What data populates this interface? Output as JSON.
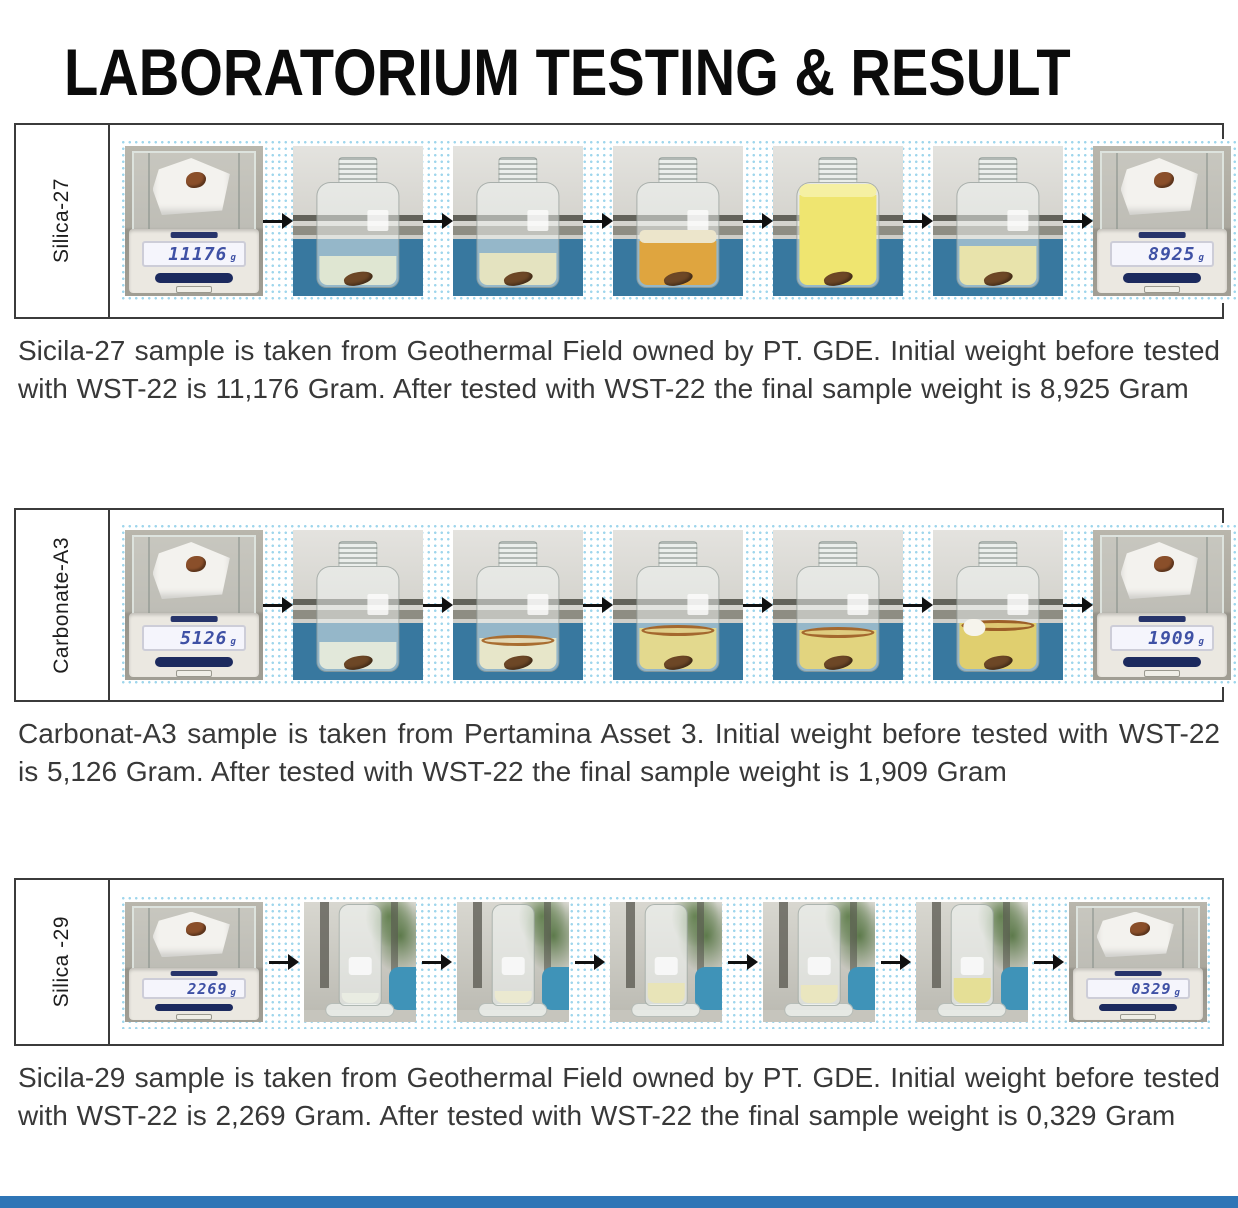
{
  "page": {
    "title": "LABORATORIUM TESTING & RESULT",
    "footer_bar_color": "#2e75b6",
    "dot_pattern_color": "#9fd6ec",
    "border_color": "#3b3b3b",
    "lcd_digit_color": "#3f51a5",
    "table_color": "#38789f"
  },
  "rows": [
    {
      "label": "Silica-27",
      "caption": "Sicila-27 sample is taken from Geothermal Field owned by PT. GDE. Initial weight before tested with WST-22 is 11,176 Gram. After tested with WST-22 the final sample weight is 8,925 Gram",
      "initial_weight_gram": "11,176",
      "final_weight_gram": "8,925",
      "stages": [
        {
          "kind": "scale",
          "reading": "11176",
          "unit": "g"
        },
        {
          "kind": "jar",
          "liquid_color": "#dfe6d2",
          "fill": 28,
          "rock": true
        },
        {
          "kind": "jar",
          "liquid_color": "#e4e3c0",
          "fill": 31,
          "rock": true
        },
        {
          "kind": "jar",
          "liquid_color": "#dfa53f",
          "fill": 42,
          "foam_color": "#ece5cb",
          "rock": true
        },
        {
          "kind": "jar",
          "liquid_color": "#efe570",
          "fill": 86,
          "foam_color": "#f5f0a3",
          "rock": true
        },
        {
          "kind": "jar",
          "liquid_color": "#e8e3ab",
          "fill": 38,
          "rock": true
        },
        {
          "kind": "scale",
          "reading": "8925",
          "unit": "g"
        }
      ]
    },
    {
      "label": "Carbonate-A3",
      "caption": "Carbonat-A3 sample is taken from Pertamina Asset 3. Initial weight before tested with WST-22 is 5,126 Gram. After tested with WST-22 the final sample weight is 1,909 Gram",
      "initial_weight_gram": "5,126",
      "final_weight_gram": "1,909",
      "stages": [
        {
          "kind": "scale",
          "reading": "5126",
          "unit": "g"
        },
        {
          "kind": "jar",
          "liquid_color": "#e2e8da",
          "fill": 26,
          "rock": true
        },
        {
          "kind": "jar",
          "liquid_color": "#e7e6c9",
          "fill": 30,
          "ring_color": "#a96d30",
          "rock": true
        },
        {
          "kind": "jar",
          "liquid_color": "#e3d98e",
          "fill": 40,
          "ring_color": "#a4682e",
          "rock": true
        },
        {
          "kind": "jar",
          "liquid_color": "#e2d47f",
          "fill": 38,
          "ring_color": "#a4682e",
          "rock": true
        },
        {
          "kind": "jar",
          "liquid_color": "#e0cf6f",
          "fill": 44,
          "ring_color": "#9c5f28",
          "chunk": true,
          "rock": true
        },
        {
          "kind": "scale",
          "reading": "1909",
          "unit": "g"
        }
      ]
    },
    {
      "label": "Silica -29",
      "caption": "Sicila-29 sample is taken from Geothermal Field owned by PT. GDE. Initial weight before tested with WST-22 is 2,269 Gram. After tested with WST-22 the final sample weight is 0,329 Gram",
      "initial_weight_gram": "2,269",
      "final_weight_gram": "0,329",
      "stages": [
        {
          "kind": "scale",
          "reading": "2269",
          "unit": "g"
        },
        {
          "kind": "tube",
          "liquid_color": "#e9ece2",
          "fill": 10
        },
        {
          "kind": "tube",
          "liquid_color": "#ebe9d0",
          "fill": 12
        },
        {
          "kind": "tube",
          "liquid_color": "#e8e4b8",
          "fill": 20
        },
        {
          "kind": "tube",
          "liquid_color": "#eae6bf",
          "fill": 18
        },
        {
          "kind": "tube",
          "liquid_color": "#e5df96",
          "fill": 25
        },
        {
          "kind": "scale",
          "reading": "0329",
          "unit": "g"
        }
      ]
    }
  ]
}
